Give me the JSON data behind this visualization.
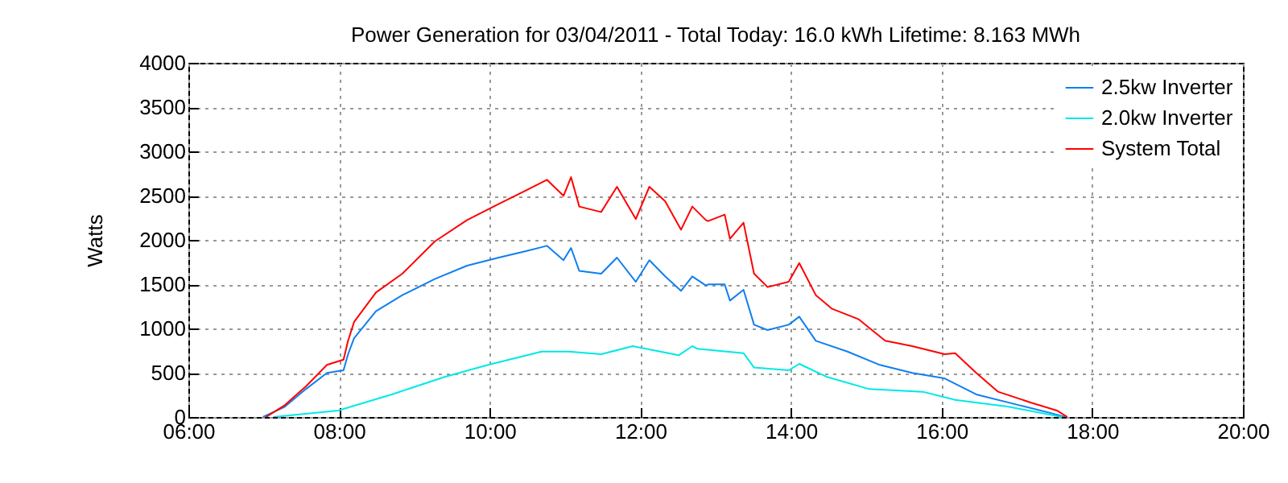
{
  "chart_data": {
    "type": "line",
    "title": "Power Generation for 03/04/2011 - Total Today: 16.0 kWh   Lifetime: 8.163 MWh",
    "ylabel": "Watts",
    "xlim": [
      6,
      20
    ],
    "xticks": [
      {
        "value": 6,
        "label": "06:00"
      },
      {
        "value": 8,
        "label": "08:00"
      },
      {
        "value": 10,
        "label": "10:00"
      },
      {
        "value": 12,
        "label": "12:00"
      },
      {
        "value": 14,
        "label": "14:00"
      },
      {
        "value": 16,
        "label": "16:00"
      },
      {
        "value": 18,
        "label": "18:00"
      },
      {
        "value": 20,
        "label": "20:00"
      }
    ],
    "ylim": [
      0,
      4000
    ],
    "yticks": [
      0,
      500,
      1000,
      1500,
      2000,
      2500,
      3000,
      3500,
      4000
    ],
    "grid": true,
    "legend": "top right",
    "line_style": "solid",
    "series": [
      {
        "name": "2.5kw Inverter",
        "color": "#0f7ff0",
        "x": [
          6.99,
          7.28,
          7.56,
          7.84,
          8.06,
          8.12,
          8.2,
          8.49,
          8.84,
          9.27,
          9.7,
          10.12,
          10.48,
          10.76,
          10.98,
          11.08,
          11.19,
          11.48,
          11.69,
          11.94,
          12.12,
          12.33,
          12.54,
          12.69,
          12.87,
          12.9,
          13.12,
          13.19,
          13.37,
          13.51,
          13.69,
          13.97,
          14.11,
          14.33,
          14.75,
          15.18,
          15.61,
          16.04,
          16.46,
          17.03,
          17.46,
          17.64
        ],
        "values": [
          0,
          115,
          315,
          497,
          527,
          709,
          890,
          1194,
          1376,
          1558,
          1709,
          1800,
          1873,
          1933,
          1770,
          1909,
          1649,
          1618,
          1800,
          1527,
          1770,
          1588,
          1424,
          1588,
          1485,
          1497,
          1497,
          1315,
          1436,
          1042,
          982,
          1042,
          1133,
          860,
          739,
          588,
          497,
          436,
          255,
          133,
          42,
          0
        ]
      },
      {
        "name": "2.0kw Inverter",
        "color": "#00e8e8",
        "x": [
          7.13,
          7.99,
          8.7,
          9.41,
          9.98,
          10.69,
          11.05,
          11.48,
          11.9,
          12.51,
          12.69,
          12.76,
          13.37,
          13.51,
          13.97,
          14.11,
          14.47,
          15.04,
          15.75,
          16.18,
          16.89,
          17.53,
          17.6
        ],
        "values": [
          0,
          73,
          255,
          455,
          588,
          739,
          739,
          709,
          800,
          697,
          800,
          770,
          721,
          558,
          527,
          600,
          455,
          315,
          285,
          194,
          115,
          12,
          0
        ]
      },
      {
        "name": "System Total",
        "color": "#ff0000",
        "x": [
          7.03,
          7.28,
          7.56,
          7.84,
          8.06,
          8.12,
          8.2,
          8.49,
          8.84,
          9.27,
          9.7,
          10.12,
          10.48,
          10.76,
          10.98,
          11.08,
          11.19,
          11.48,
          11.69,
          11.94,
          12.12,
          12.33,
          12.54,
          12.69,
          12.87,
          12.9,
          13.12,
          13.19,
          13.37,
          13.51,
          13.69,
          13.97,
          14.11,
          14.33,
          14.54,
          14.9,
          15.25,
          15.61,
          16.04,
          16.18,
          16.46,
          16.75,
          17.18,
          17.53,
          17.67
        ],
        "values": [
          0,
          133,
          345,
          588,
          648,
          861,
          1073,
          1406,
          1618,
          1982,
          2224,
          2406,
          2558,
          2679,
          2497,
          2709,
          2376,
          2315,
          2600,
          2236,
          2600,
          2436,
          2115,
          2376,
          2224,
          2212,
          2285,
          2012,
          2194,
          1618,
          1467,
          1527,
          1739,
          1376,
          1224,
          1103,
          861,
          800,
          709,
          721,
          497,
          285,
          164,
          73,
          0
        ]
      }
    ]
  }
}
